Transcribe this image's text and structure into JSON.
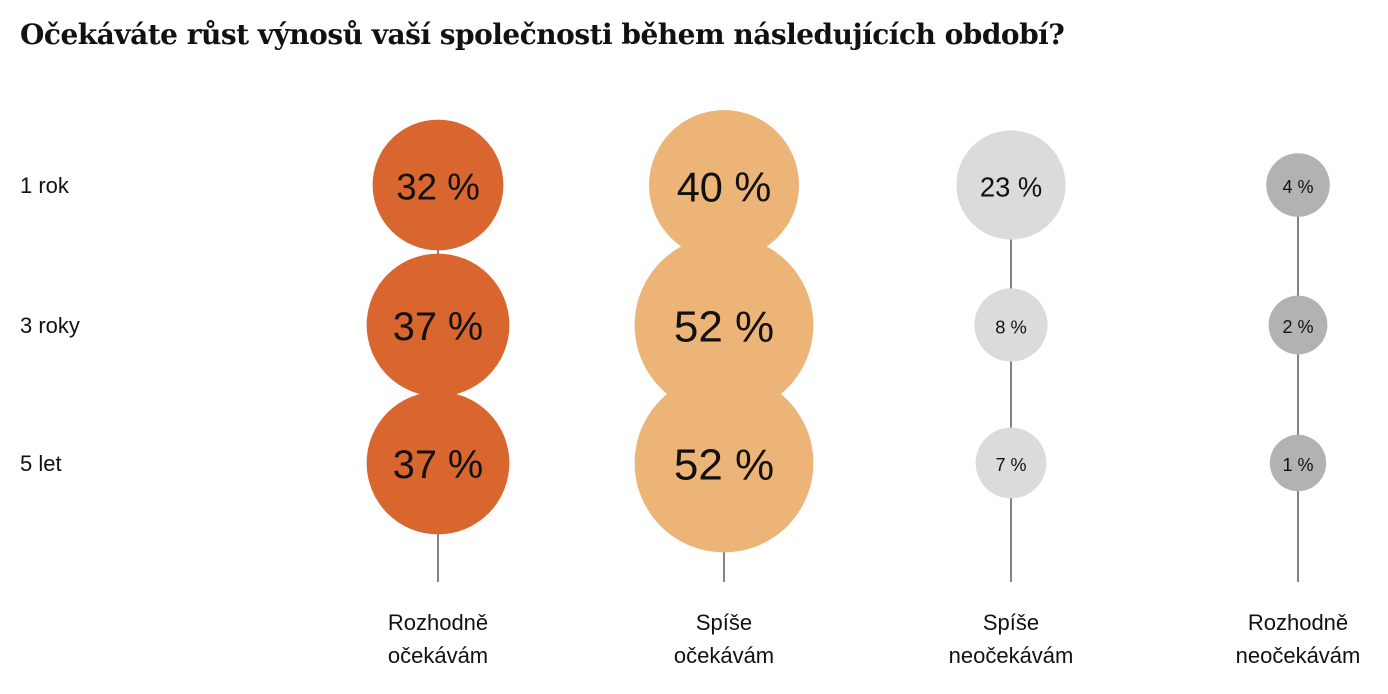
{
  "chart_data": {
    "type": "bubble",
    "title": "Očekáváte růst výnosů vaší společnosti během následujících období?",
    "rows": [
      "1 rok",
      "3 roky",
      "5 let"
    ],
    "columns": [
      {
        "label_lines": [
          "Rozhodně",
          "očekávám"
        ],
        "color": "#D9662F"
      },
      {
        "label_lines": [
          "Spíše",
          "očekávám"
        ],
        "color": "#EDB478"
      },
      {
        "label_lines": [
          "Spíše",
          "neočekávám"
        ],
        "color": "#DBDBDB"
      },
      {
        "label_lines": [
          "Rozhodně",
          "neočekávám"
        ],
        "color": "#B2B2B2"
      }
    ],
    "values": [
      [
        32,
        40,
        23,
        4
      ],
      [
        37,
        52,
        8,
        2
      ],
      [
        37,
        52,
        7,
        1
      ]
    ],
    "unit": " %"
  }
}
